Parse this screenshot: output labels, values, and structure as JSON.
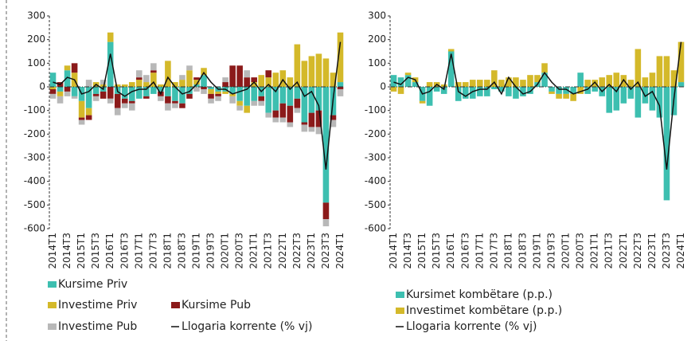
{
  "chart_data": [
    {
      "type": "stacked-bar",
      "categories": [
        "2014T1",
        null,
        "2014T3",
        null,
        "2015T1",
        null,
        "2015T3",
        null,
        "2016T1",
        null,
        "2016T3",
        null,
        "2017T1",
        null,
        "2017T3",
        null,
        "2018T1",
        null,
        "2018T3",
        null,
        "2019T1",
        null,
        "2019T3",
        null,
        "2020T1",
        null,
        "2020T3",
        null,
        "2021T1",
        null,
        "2021T3",
        null,
        "2022T1",
        null,
        "2022T3",
        null,
        "2023T1",
        null,
        "2023T3",
        null,
        "2024T1"
      ],
      "ylim": [
        -600,
        300
      ],
      "yticks": [
        -600,
        -500,
        -400,
        -300,
        -200,
        -100,
        0,
        100,
        200,
        300
      ],
      "series": [
        {
          "name": "Kursime Priv",
          "color": "#3dbfb0",
          "values": [
            60,
            -20,
            70,
            -40,
            -60,
            -90,
            -30,
            -20,
            190,
            -30,
            -50,
            -60,
            -50,
            -40,
            -30,
            -20,
            -40,
            -60,
            -70,
            -30,
            10,
            50,
            -10,
            -20,
            -20,
            -30,
            -60,
            -80,
            -60,
            -40,
            -110,
            -100,
            -70,
            -80,
            -50,
            -150,
            -110,
            -100,
            -490,
            -120,
            20
          ]
        },
        {
          "name": "Investime Priv",
          "color": "#d4b92a",
          "values": [
            -10,
            -20,
            20,
            60,
            -70,
            -30,
            20,
            10,
            40,
            10,
            10,
            20,
            30,
            20,
            60,
            10,
            110,
            20,
            30,
            70,
            20,
            30,
            -20,
            -10,
            -10,
            -10,
            -20,
            -30,
            20,
            50,
            40,
            60,
            70,
            40,
            180,
            110,
            130,
            140,
            120,
            60,
            210
          ]
        },
        {
          "name": "Kursime Pub",
          "color": "#8b1a1a",
          "values": [
            -20,
            20,
            -20,
            40,
            -10,
            -20,
            -10,
            -30,
            -50,
            -60,
            -20,
            -10,
            10,
            -10,
            10,
            -20,
            -30,
            -10,
            -20,
            -20,
            10,
            -10,
            -20,
            -10,
            20,
            90,
            90,
            40,
            20,
            -20,
            30,
            -30,
            -60,
            -70,
            -40,
            -10,
            -60,
            -70,
            -70,
            -20,
            -10
          ]
        },
        {
          "name": "Investime Pub",
          "color": "#b8b8b8",
          "values": [
            -20,
            -30,
            -20,
            -10,
            -20,
            30,
            -20,
            20,
            -20,
            -30,
            -20,
            -30,
            30,
            30,
            30,
            -20,
            -30,
            -20,
            20,
            20,
            -20,
            -20,
            -20,
            -20,
            20,
            -30,
            -20,
            30,
            -20,
            -20,
            -20,
            -20,
            -20,
            -20,
            -20,
            -30,
            -20,
            -30,
            -30,
            -30,
            -30
          ]
        },
        {
          "name": "Llogaria korrente (% vj)",
          "type": "line",
          "color": "#111111",
          "values": [
            20,
            10,
            40,
            30,
            -30,
            -20,
            10,
            -10,
            140,
            -20,
            -40,
            -20,
            -10,
            -10,
            20,
            -30,
            40,
            0,
            -30,
            -20,
            10,
            60,
            20,
            -10,
            -10,
            -30,
            -20,
            -10,
            20,
            -20,
            10,
            -20,
            30,
            -10,
            20,
            -40,
            -20,
            -80,
            -350,
            -50,
            190
          ]
        }
      ]
    },
    {
      "type": "stacked-bar",
      "categories": [
        "2014T1",
        null,
        "2014T3",
        null,
        "2015T1",
        null,
        "2015T3",
        null,
        "2016T1",
        null,
        "2016T3",
        null,
        "2017T1",
        null,
        "2017T3",
        null,
        "2018T1",
        null,
        "2018T3",
        null,
        "2019T1",
        null,
        "2019T3",
        null,
        "2020T1",
        null,
        "2020T3",
        null,
        "2021T1",
        null,
        "2021T3",
        null,
        "2022T1",
        null,
        "2022T3",
        null,
        "2023T1",
        null,
        "2023T3",
        null,
        "2024T1"
      ],
      "ylim": [
        -600,
        300
      ],
      "yticks": [
        -600,
        -500,
        -400,
        -300,
        -200,
        -100,
        0,
        100,
        200,
        300
      ],
      "series": [
        {
          "name": "Kursimet kombëtare (p.p.)",
          "color": "#3dbfb0",
          "values": [
            50,
            40,
            50,
            20,
            -60,
            -80,
            -20,
            -30,
            150,
            -60,
            -50,
            -50,
            -40,
            -40,
            -10,
            -20,
            -40,
            -50,
            -40,
            -30,
            20,
            60,
            -20,
            -30,
            -30,
            -30,
            60,
            -30,
            -20,
            -40,
            -110,
            -100,
            -70,
            -50,
            -130,
            -70,
            -100,
            -130,
            -480,
            -120,
            20
          ]
        },
        {
          "name": "Investimet kombëtare (p.p.)",
          "color": "#d4b92a",
          "values": [
            -20,
            -30,
            10,
            20,
            -10,
            20,
            20,
            10,
            10,
            20,
            20,
            30,
            30,
            30,
            70,
            30,
            40,
            40,
            30,
            50,
            30,
            40,
            -10,
            -20,
            -20,
            -30,
            -30,
            30,
            30,
            40,
            50,
            60,
            50,
            30,
            160,
            40,
            60,
            130,
            130,
            70,
            170
          ]
        },
        {
          "name": "Llogaria korrente (% vj)",
          "type": "line",
          "color": "#111111",
          "values": [
            20,
            10,
            40,
            30,
            -30,
            -20,
            10,
            -10,
            140,
            -20,
            -40,
            -20,
            -10,
            -10,
            20,
            -30,
            40,
            0,
            -30,
            -20,
            10,
            60,
            20,
            -10,
            -10,
            -30,
            -20,
            -10,
            20,
            -20,
            10,
            -20,
            30,
            -10,
            20,
            -40,
            -20,
            -80,
            -350,
            -50,
            190
          ]
        }
      ]
    }
  ]
}
